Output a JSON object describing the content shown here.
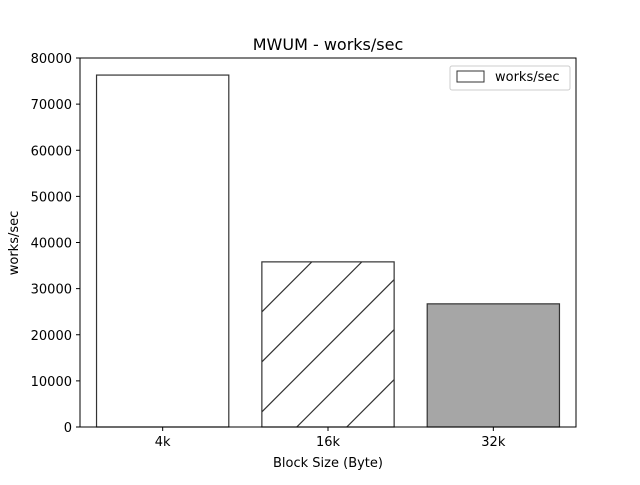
{
  "chart_data": {
    "type": "bar",
    "title": "MWUM - works/sec",
    "xlabel": "Block Size (Byte)",
    "ylabel": "works/sec",
    "categories": [
      "4k",
      "16k",
      "32k"
    ],
    "series": [
      {
        "name": "works/sec",
        "values": [
          76300,
          35800,
          26700
        ]
      }
    ],
    "ylim": [
      0,
      80000
    ],
    "yticks": [
      0,
      10000,
      20000,
      30000,
      40000,
      50000,
      60000,
      70000,
      80000
    ],
    "grid": false,
    "legend_position": "top-right",
    "bar_styles": [
      {
        "fill": "#ffffff",
        "hatch": "none"
      },
      {
        "fill": "#ffffff",
        "hatch": "diagonal"
      },
      {
        "fill": "#a6a6a6",
        "hatch": "none"
      }
    ],
    "edge_color": "#333333"
  }
}
